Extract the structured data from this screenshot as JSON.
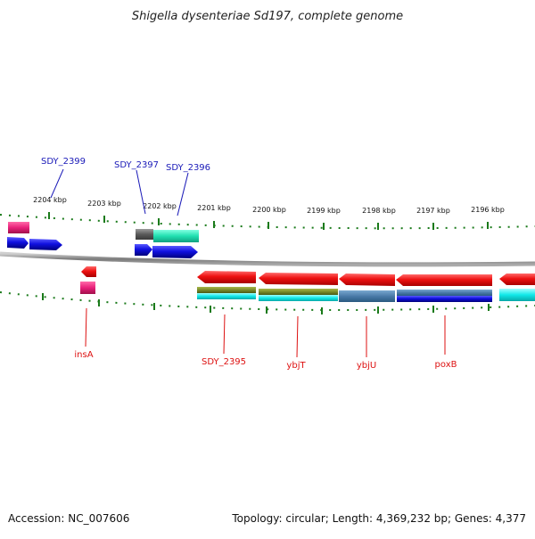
{
  "title": "Shigella dysenteriae Sd197, complete genome",
  "footer": {
    "accession": "Accession: NC_007606",
    "summary": "Topology: circular; Length: 4,369,232 bp; Genes: 4,377"
  },
  "scale_labels": [
    "2204 kbp",
    "2203 kbp",
    "2202 kbp",
    "2201 kbp",
    "2200 kbp",
    "2199 kbp",
    "2198 kbp",
    "2197 kbp",
    "2196 kbp"
  ],
  "top_gene_labels": [
    "SDY_2399",
    "SDY_2397",
    "SDY_2396"
  ],
  "bottom_gene_labels": [
    "insA",
    "SDY_2395",
    "ybjT",
    "ybjU",
    "poxB"
  ],
  "colors": {
    "forward_cds": "#1010e0",
    "reverse_cds": "#e81010",
    "pseudo_pink": "#e8207a",
    "backbone": "#888888",
    "tick": "#1a7a1a",
    "feature_teal": "#20e0c0",
    "feature_cyan": "#10e8e8",
    "feature_olive": "#7a8a2a",
    "feature_steelblue": "#4a7aa8"
  }
}
